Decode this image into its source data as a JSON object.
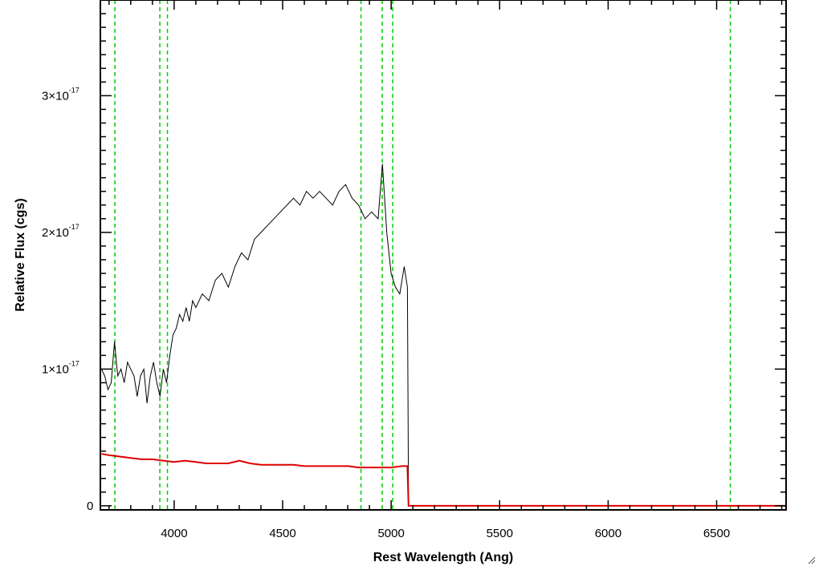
{
  "chart_data": {
    "type": "line",
    "xlabel": "Rest Wavelength (Ang)",
    "ylabel": "Relative Flux (cgs)",
    "xlim": [
      3660,
      6820
    ],
    "ylim": [
      -3e-19,
      3.7e-17
    ],
    "x_ticks": [
      4000,
      4500,
      5000,
      5500,
      6000,
      6500
    ],
    "x_tick_labels": [
      "4000",
      "4500",
      "5000",
      "5500",
      "6000",
      "6500"
    ],
    "y_ticks": [
      0,
      1e-17,
      2e-17,
      3e-17
    ],
    "y_tick_labels": [
      {
        "mantissa": "0",
        "exponent": ""
      },
      {
        "mantissa": "1×10",
        "exponent": "-17"
      },
      {
        "mantissa": "2×10",
        "exponent": "-17"
      },
      {
        "mantissa": "3×10",
        "exponent": "-17"
      }
    ],
    "vertical_markers": {
      "color": "#00cc00",
      "style": "dashed",
      "x": [
        3727,
        3934,
        3969,
        4861,
        4959,
        5007,
        6563
      ]
    },
    "series": [
      {
        "color": "#000000",
        "x": [
          3665,
          3680,
          3695,
          3710,
          3725,
          3740,
          3755,
          3770,
          3785,
          3800,
          3815,
          3830,
          3845,
          3860,
          3875,
          3890,
          3905,
          3920,
          3935,
          3950,
          3965,
          3980,
          3995,
          4010,
          4025,
          4040,
          4055,
          4070,
          4085,
          4100,
          4130,
          4160,
          4190,
          4220,
          4250,
          4280,
          4310,
          4340,
          4370,
          4400,
          4430,
          4460,
          4490,
          4520,
          4550,
          4580,
          4610,
          4640,
          4670,
          4700,
          4730,
          4760,
          4790,
          4820,
          4850,
          4880,
          4910,
          4940,
          4960,
          4980,
          5000,
          5020,
          5040,
          5060,
          5075,
          5080,
          6820
        ],
        "values": [
          1e-17,
          9.5e-18,
          8.5e-18,
          9e-18,
          1.2e-17,
          9.5e-18,
          1e-17,
          9e-18,
          1.05e-17,
          1e-17,
          9.5e-18,
          8e-18,
          9.5e-18,
          1e-17,
          7.5e-18,
          9.5e-18,
          1.05e-17,
          9e-18,
          8e-18,
          1e-17,
          9e-18,
          1.1e-17,
          1.25e-17,
          1.3e-17,
          1.4e-17,
          1.35e-17,
          1.45e-17,
          1.35e-17,
          1.5e-17,
          1.45e-17,
          1.55e-17,
          1.5e-17,
          1.65e-17,
          1.7e-17,
          1.6e-17,
          1.75e-17,
          1.85e-17,
          1.8e-17,
          1.95e-17,
          2e-17,
          2.05e-17,
          2.1e-17,
          2.15e-17,
          2.2e-17,
          2.25e-17,
          2.2e-17,
          2.3e-17,
          2.25e-17,
          2.3e-17,
          2.25e-17,
          2.2e-17,
          2.3e-17,
          2.35e-17,
          2.25e-17,
          2.2e-17,
          2.1e-17,
          2.15e-17,
          2.1e-17,
          2.5e-17,
          2e-17,
          1.7e-17,
          1.6e-17,
          1.55e-17,
          1.75e-17,
          1.6e-17,
          0.0,
          0.0
        ]
      },
      {
        "color": "#dd0000",
        "x": [
          3665,
          3700,
          3750,
          3800,
          3850,
          3900,
          3950,
          4000,
          4050,
          4100,
          4150,
          4200,
          4250,
          4300,
          4350,
          4400,
          4450,
          4500,
          4550,
          4600,
          4650,
          4700,
          4750,
          4800,
          4850,
          4900,
          4950,
          5000,
          5050,
          5075,
          5080,
          6820
        ],
        "values": [
          3.8e-18,
          3.7e-18,
          3.6e-18,
          3.5e-18,
          3.4e-18,
          3.4e-18,
          3.3e-18,
          3.2e-18,
          3.3e-18,
          3.2e-18,
          3.1e-18,
          3.1e-18,
          3.1e-18,
          3.3e-18,
          3.1e-18,
          3e-18,
          3e-18,
          3e-18,
          3e-18,
          2.9e-18,
          2.9e-18,
          2.9e-18,
          2.9e-18,
          2.9e-18,
          2.8e-18,
          2.8e-18,
          2.8e-18,
          2.8e-18,
          2.9e-18,
          2.9e-18,
          0.0,
          0.0
        ]
      }
    ]
  },
  "icons": {
    "resize_grip": "resize-grip-icon"
  }
}
